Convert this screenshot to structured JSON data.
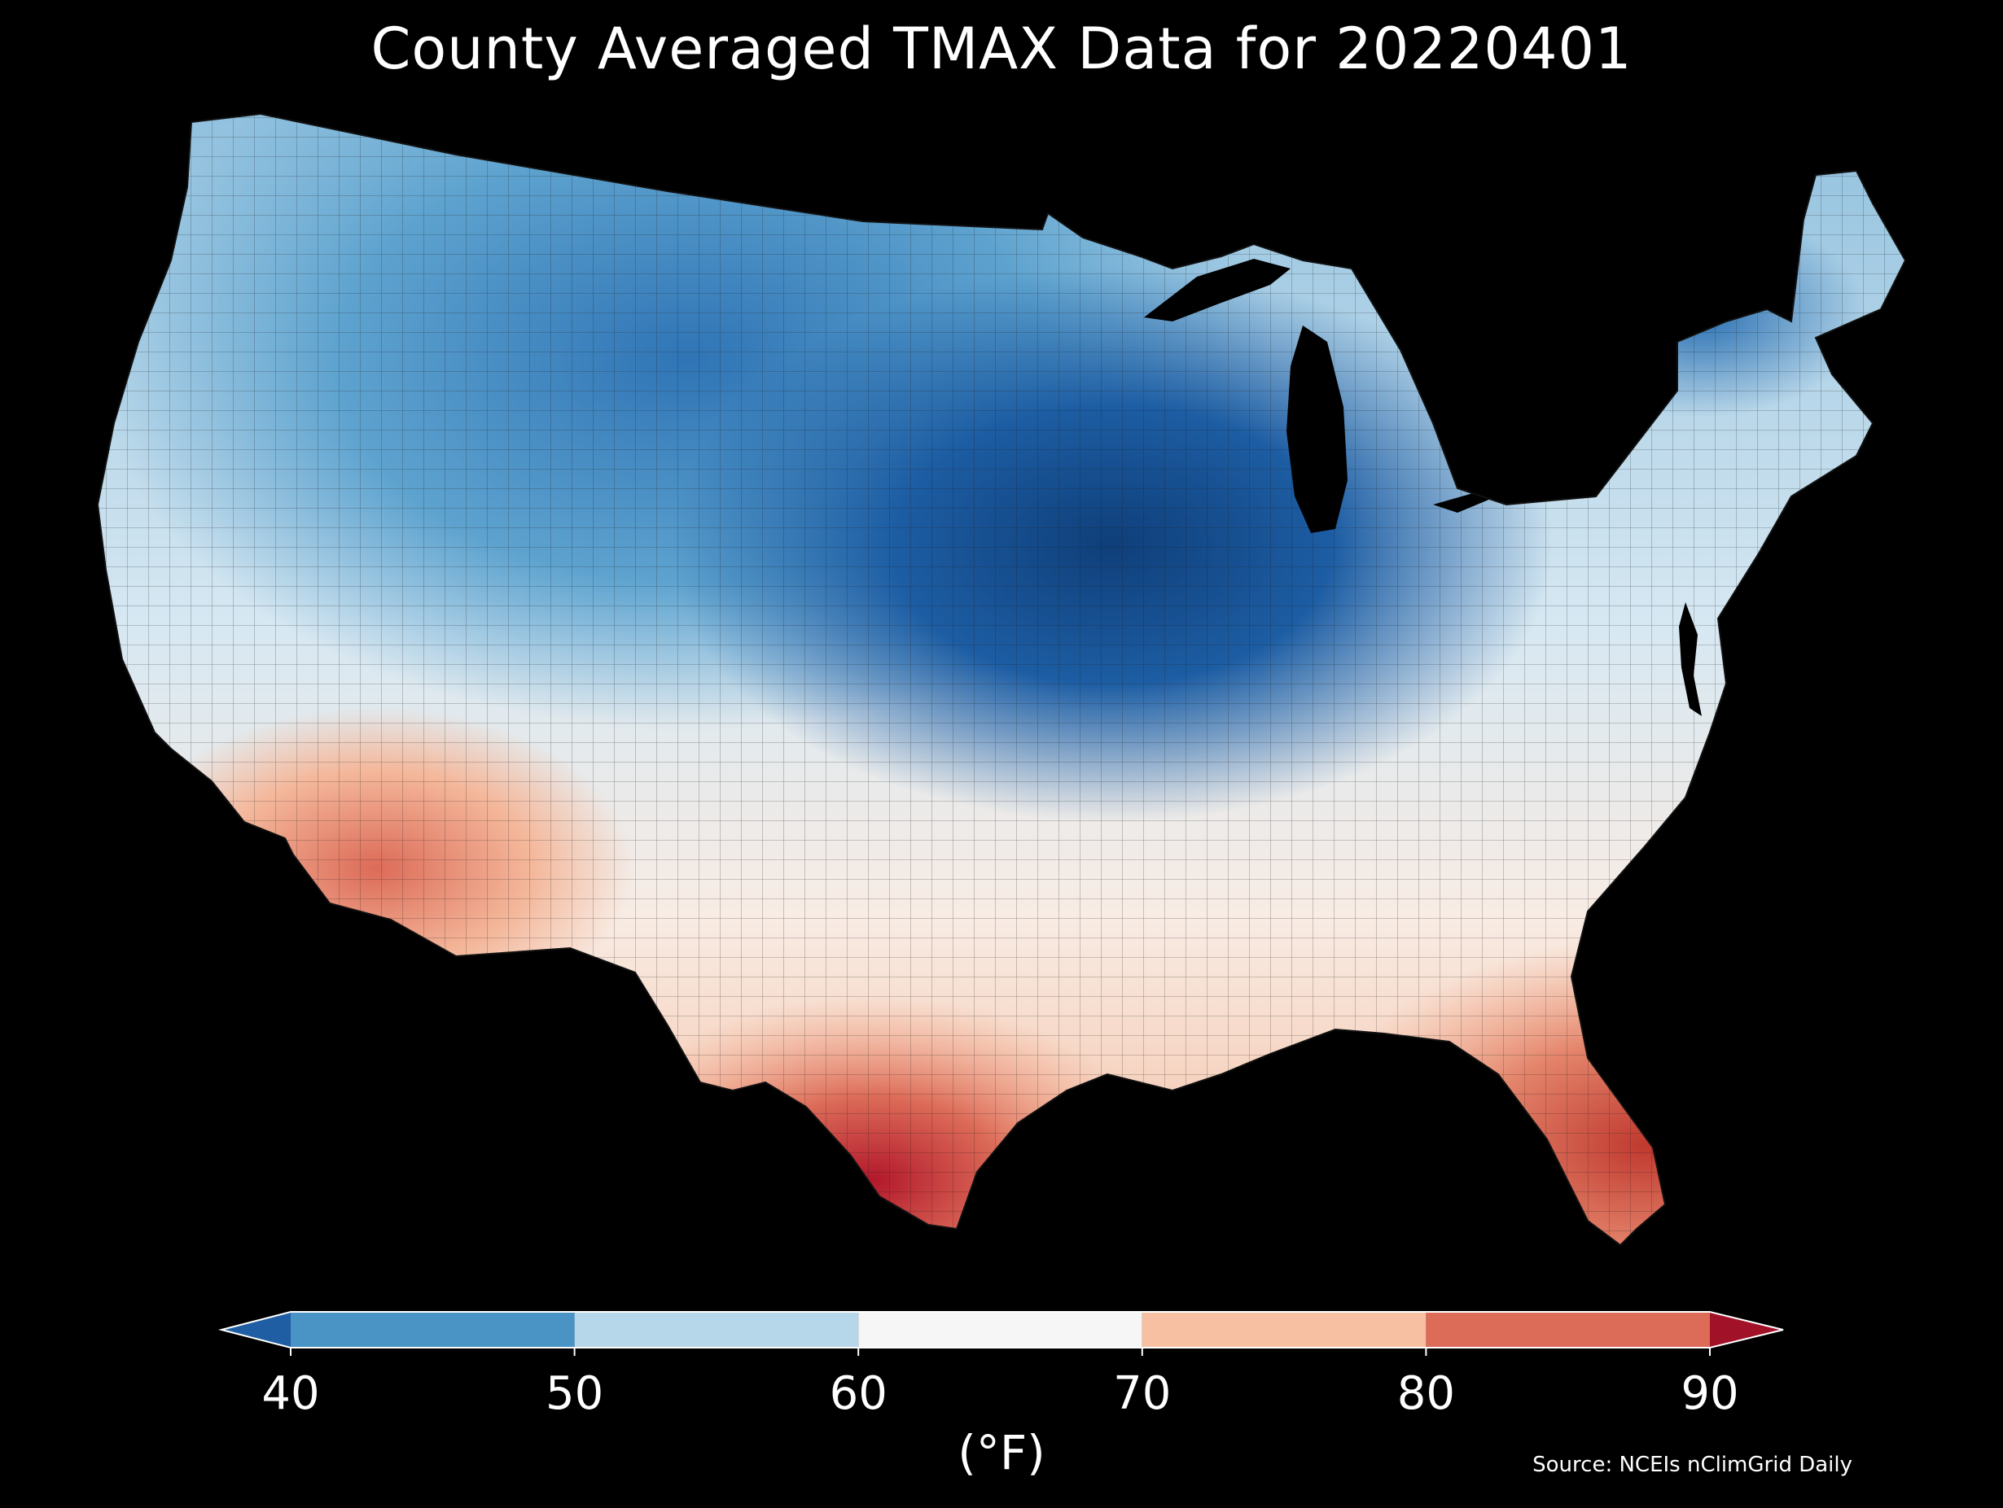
{
  "title": "County Averaged TMAX Data for 20220401",
  "colorbar": {
    "ticks": [
      "40",
      "50",
      "60",
      "70",
      "80",
      "90"
    ],
    "unit_label": "(°F)",
    "bins": [
      {
        "range": [
          30,
          40
        ],
        "color": "#1f5ea3",
        "extend": "min"
      },
      {
        "range": [
          40,
          50
        ],
        "color": "#4a94c5"
      },
      {
        "range": [
          50,
          60
        ],
        "color": "#b6d6e9"
      },
      {
        "range": [
          60,
          70
        ],
        "color": "#f6f6f6"
      },
      {
        "range": [
          70,
          80
        ],
        "color": "#f8c0a3"
      },
      {
        "range": [
          80,
          90
        ],
        "color": "#dc6b58"
      },
      {
        "range": [
          90,
          100
        ],
        "color": "#a11228",
        "extend": "max"
      }
    ]
  },
  "source": "Source: NCEIs nClimGrid Daily",
  "colors": {
    "background": "#000000",
    "text": "#ffffff"
  }
}
